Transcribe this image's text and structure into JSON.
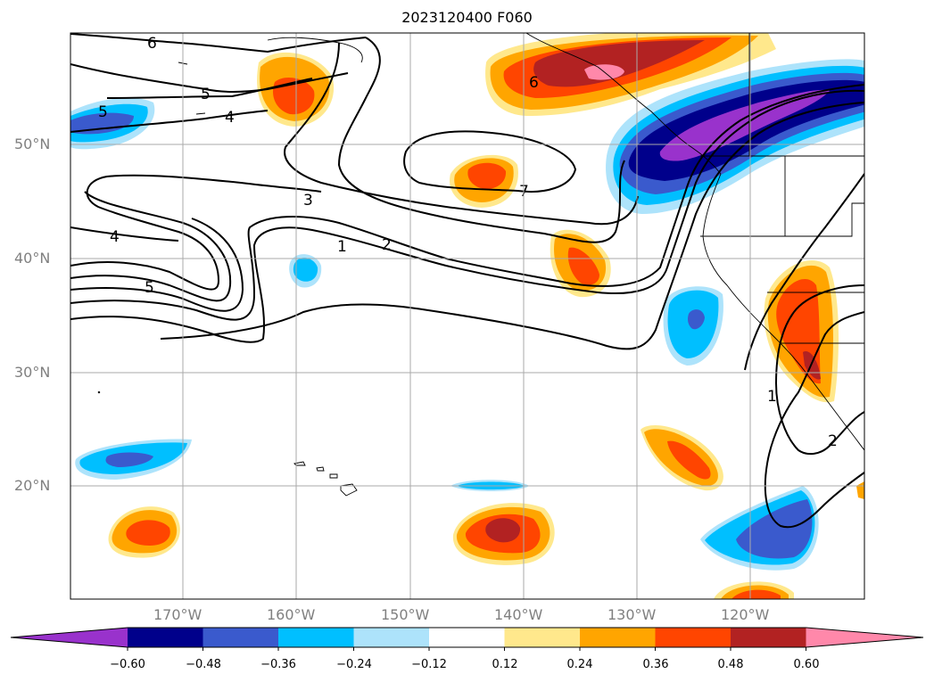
{
  "title": "2023120400 F060",
  "lat_labels": [
    "50°N",
    "40°N",
    "30°N",
    "20°N"
  ],
  "lon_labels": [
    "170°W",
    "160°W",
    "150°W",
    "140°W",
    "130°W",
    "120°W"
  ],
  "contour_labels": [
    "6",
    "5",
    "4",
    "5",
    "3",
    "1",
    "2",
    "4",
    "5",
    "6",
    "7",
    "1",
    "2"
  ],
  "colorbar": {
    "ticks": [
      "−0.60",
      "−0.48",
      "−0.36",
      "−0.24",
      "−0.12",
      "0.12",
      "0.24",
      "0.36",
      "0.48",
      "0.60"
    ],
    "colors": [
      "#9932CC",
      "#00008B",
      "#3A5ACD",
      "#00BFFF",
      "#ADE3FB",
      "#FFFFFF",
      "#FFE88C",
      "#FFA500",
      "#FF4500",
      "#B22222",
      "#FF88AA"
    ]
  }
}
